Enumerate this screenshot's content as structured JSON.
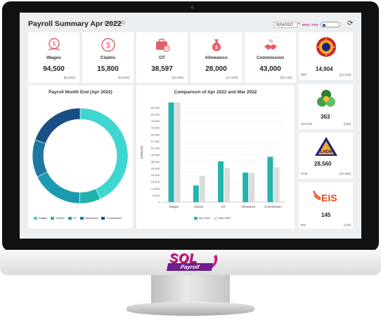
{
  "header": {
    "title": "Payroll Summary Apr 2022",
    "subtitle": "(Mar 2022)",
    "date_value": "30/04/2022",
    "period_mode": "MTD / YTD"
  },
  "brand": {
    "sql_text": "SQL",
    "payroll_text": "Payroll"
  },
  "kpis": [
    {
      "label": "Wages",
      "value": "94,500",
      "prev": "[94,500]",
      "icon": "wages-icon"
    },
    {
      "label": "Claims",
      "value": "15,800",
      "prev": "[24,682]",
      "icon": "dollar-icon"
    },
    {
      "label": "OT",
      "value": "38,597",
      "prev": "[32,606]",
      "icon": "briefcase-clock-icon"
    },
    {
      "label": "Allowance",
      "value": "28,000",
      "prev": "[27,825]",
      "icon": "money-bag-icon"
    },
    {
      "label": "Commission",
      "value": "43,000",
      "prev": "[33,133]",
      "icon": "handshake-icon"
    }
  ],
  "side": [
    {
      "label": "EPF",
      "value": "14,904",
      "prev": "[14,018]",
      "icon": "epf-logo-icon"
    },
    {
      "label": "SOCSO",
      "value": "363",
      "prev": "[349]",
      "icon": "socso-logo-icon"
    },
    {
      "label": "PCB",
      "value": "28,560",
      "prev": "[22,885]",
      "icon": "lhdn-logo-icon"
    },
    {
      "label": "EIS",
      "value": "145",
      "prev": "[148]",
      "icon": "eis-logo-icon",
      "logo_text": "EIS"
    }
  ],
  "lhdn_text": "LHDN",
  "colors": {
    "wages": "#3fd6cf",
    "claims": "#20b2aa",
    "ot": "#1a9bb0",
    "allowance": "#1f78a4",
    "commission": "#1a4f86",
    "apr": "#22b5ae",
    "mar": "#dcdcdc",
    "accent": "#e85d6c"
  },
  "chart_data": [
    {
      "type": "pie",
      "title": "Payroll Month End (Apr 2022)",
      "categories": [
        "Wages",
        "Claims",
        "OT",
        "Allowance",
        "Commission"
      ],
      "values": [
        94500,
        15800,
        38597,
        28000,
        43000
      ],
      "legend": "bottom"
    },
    {
      "type": "bar",
      "title": "Comparison of Apr 2022 and Mar 2022",
      "categories": [
        "Wages",
        "Claims",
        "OT",
        "Allowance",
        "Commission"
      ],
      "series": [
        {
          "name": "Apr 2022",
          "values": [
            94500,
            15800,
            38597,
            28000,
            43000
          ]
        },
        {
          "name": "Mar 2022",
          "values": [
            94500,
            24682,
            32606,
            27825,
            33133
          ]
        }
      ],
      "ylabel": "(Amount)",
      "ylim": [
        0,
        100000
      ],
      "yticks": [
        "0",
        "6,400",
        "12,800",
        "19,200",
        "25,600",
        "32,000",
        "38,400",
        "44,800",
        "51,200",
        "57,600",
        "64,000",
        "70,400",
        "76,800",
        "83,200",
        "89,600"
      ],
      "legend": "bottom"
    }
  ]
}
